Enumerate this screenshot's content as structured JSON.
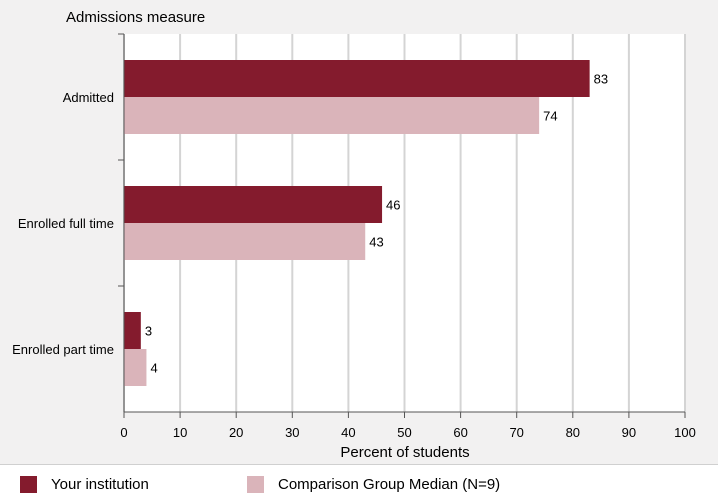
{
  "colors": {
    "your_institution": "#841b2d",
    "comparison": "#dab4ba",
    "grid": "#d4d4d4",
    "plot_bg": "#ffffff",
    "page_bg": "#f2f1f1"
  },
  "chart_data": {
    "type": "bar",
    "orientation": "horizontal",
    "title": "",
    "ylabel": "Admissions measure",
    "xlabel": "Percent of students",
    "xlim": [
      0,
      100
    ],
    "xticks": [
      "0",
      "10",
      "20",
      "30",
      "40",
      "50",
      "60",
      "70",
      "80",
      "90",
      "100"
    ],
    "grid": true,
    "legend_position": "bottom",
    "categories": [
      "Admitted",
      "Enrolled full time",
      "Enrolled part time"
    ],
    "series": [
      {
        "name": "Your institution",
        "values": [
          83,
          46,
          3
        ],
        "labels": [
          "83",
          "46",
          "3"
        ]
      },
      {
        "name": "Comparison Group Median (N=9)",
        "values": [
          74,
          43,
          4
        ],
        "labels": [
          "74",
          "43",
          "4"
        ]
      }
    ]
  }
}
